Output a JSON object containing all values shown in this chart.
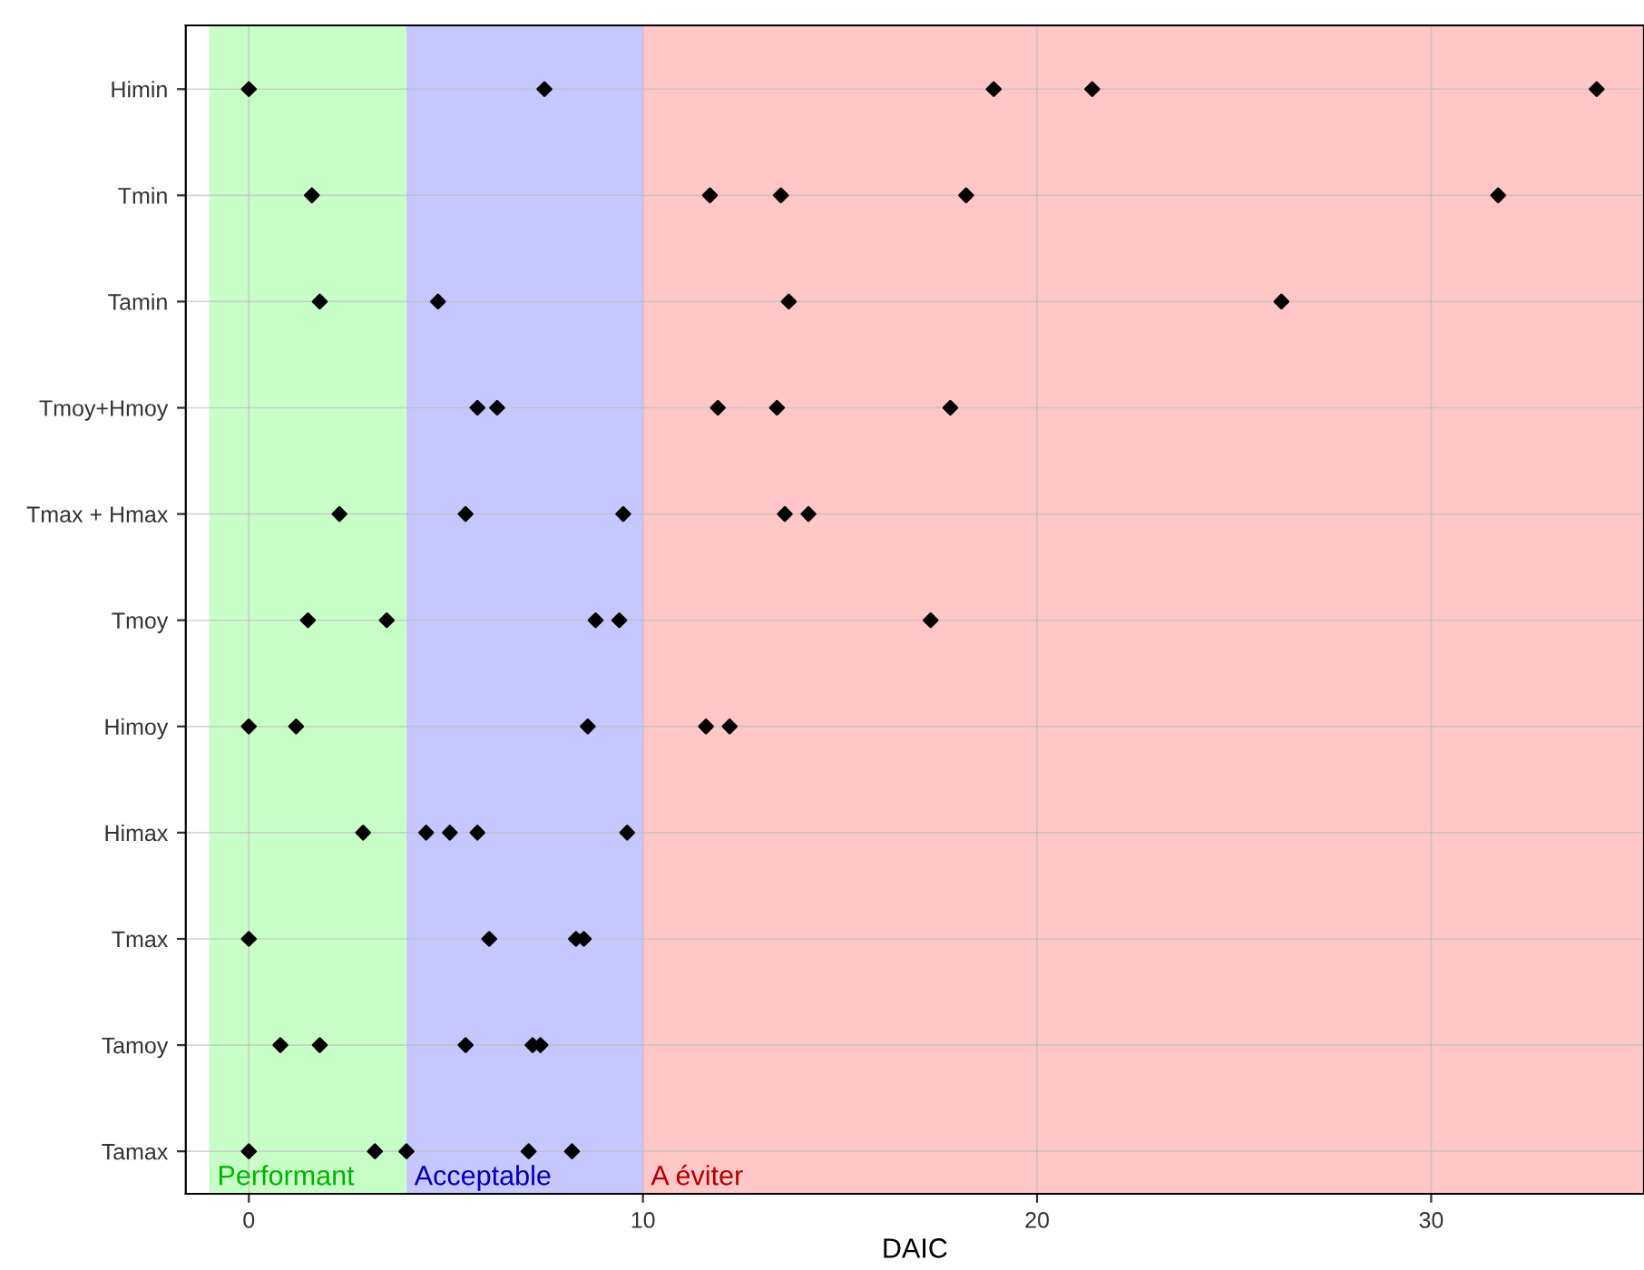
{
  "chart_data": {
    "type": "scatter",
    "orientation": "horizontal",
    "xlabel": "DAIC",
    "marker": "diamond",
    "grid": true,
    "categories": [
      "Himin",
      "Tmin",
      "Tamin",
      "Tmoy+Hmoy",
      "Tmax + Hmax",
      "Tmoy",
      "Himoy",
      "Himax",
      "Tmax",
      "Tamoy",
      "Tamax"
    ],
    "series": [
      {
        "color": "#000000",
        "values": [
          0,
          1.6,
          1.8,
          5.8,
          2.3,
          1.5,
          0,
          2.9,
          0,
          0.8,
          0
        ]
      },
      {
        "color": "#000000",
        "values": [
          7.5,
          11.7,
          4.8,
          6.3,
          5.5,
          3.5,
          1.2,
          4.5,
          6.1,
          1.8,
          3.2
        ]
      },
      {
        "color": "#000000",
        "values": [
          18.9,
          13.5,
          13.7,
          11.9,
          9.5,
          8.8,
          8.6,
          5.1,
          8.3,
          5.5,
          4.0
        ]
      },
      {
        "color": "#000000",
        "values": [
          21.4,
          18.2,
          26.2,
          13.4,
          13.6,
          9.4,
          11.6,
          5.8,
          8.5,
          7.2,
          7.1
        ]
      },
      {
        "color": "#000000",
        "values": [
          34.2,
          31.7,
          null,
          17.8,
          14.2,
          17.3,
          12.2,
          9.6,
          null,
          7.4,
          8.2
        ]
      }
    ],
    "xlim": [
      -1.6,
      35.4
    ],
    "xticks": [
      0,
      10,
      20,
      30
    ],
    "bands": [
      {
        "axis": "x",
        "from": -1,
        "to": 4,
        "label": "Performant",
        "color": "#00ff00"
      },
      {
        "axis": "x",
        "from": 4,
        "to": 10,
        "label": "Acceptable",
        "color": "#0000ff"
      },
      {
        "axis": "x",
        "from": 10,
        "to": 35.4,
        "label": "A éviter",
        "color": "#ff0000"
      }
    ]
  }
}
